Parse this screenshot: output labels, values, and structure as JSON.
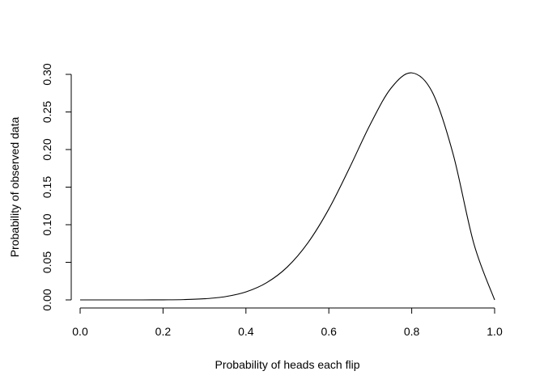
{
  "chart_data": {
    "type": "line",
    "title": "",
    "xlabel": "Probability of heads each flip",
    "ylabel": "Probability of observed data",
    "xlim": [
      0,
      1
    ],
    "ylim": [
      0,
      0.3
    ],
    "grid": false,
    "x_ticks": [
      0.0,
      0.2,
      0.4,
      0.6,
      0.8,
      1.0
    ],
    "x_tick_labels": [
      "0.0",
      "0.2",
      "0.4",
      "0.6",
      "0.8",
      "1.0"
    ],
    "y_ticks": [
      0.0,
      0.05,
      0.1,
      0.15,
      0.2,
      0.25,
      0.3
    ],
    "y_tick_labels": [
      "0.00",
      "0.05",
      "0.10",
      "0.15",
      "0.20",
      "0.25",
      "0.30"
    ],
    "series": [
      {
        "x": [
          0.0,
          0.05,
          0.1,
          0.15,
          0.2,
          0.25,
          0.3,
          0.35,
          0.4,
          0.45,
          0.5,
          0.55,
          0.6,
          0.65,
          0.7,
          0.75,
          0.8,
          0.85,
          0.9,
          0.95,
          1.0
        ],
        "y": [
          0.0,
          0.0,
          0.0,
          0.0,
          0.0001,
          0.0004,
          0.0015,
          0.0043,
          0.0106,
          0.0229,
          0.0439,
          0.0763,
          0.1209,
          0.1757,
          0.2335,
          0.2816,
          0.302,
          0.2759,
          0.1937,
          0.0746,
          0.0
        ]
      }
    ]
  }
}
